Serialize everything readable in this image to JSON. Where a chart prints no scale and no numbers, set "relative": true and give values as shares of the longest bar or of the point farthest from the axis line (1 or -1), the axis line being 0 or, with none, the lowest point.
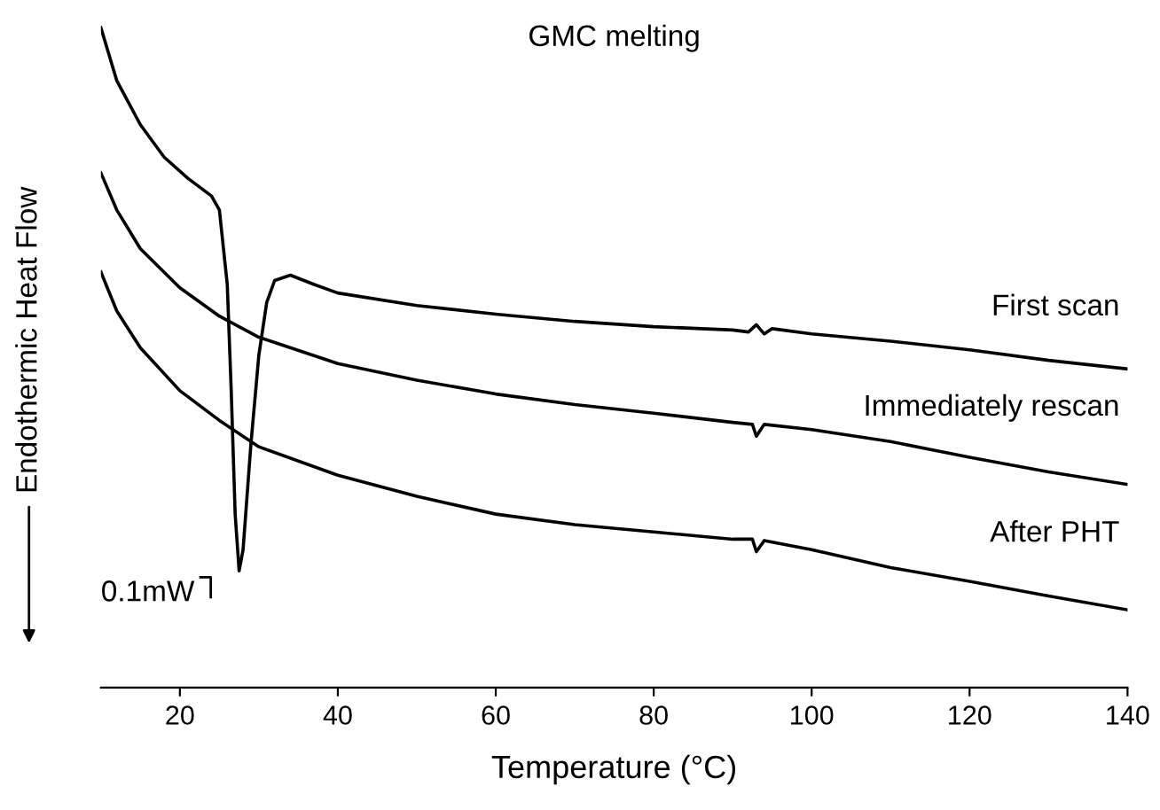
{
  "chart_data": {
    "type": "line",
    "title": "GMC melting",
    "xlabel": "Temperature (°C)",
    "ylabel": "Endothermic Heat Flow",
    "relative": true,
    "xlim": [
      10,
      140
    ],
    "xticks": [
      20,
      40,
      60,
      80,
      100,
      120,
      140
    ],
    "marker": "none",
    "line_style": "solid",
    "annotations": [
      "0.1mW"
    ],
    "series": [
      {
        "name": "First scan",
        "color": "#000000",
        "x": [
          10,
          12,
          15,
          18,
          21,
          24,
          25,
          26,
          26.5,
          27,
          27.5,
          28,
          29,
          30,
          31,
          32,
          34,
          37,
          40,
          50,
          60,
          70,
          80,
          90,
          92,
          93,
          94,
          95,
          100,
          110,
          120,
          130,
          140
        ],
        "values": [
          1.0,
          0.92,
          0.853,
          0.804,
          0.772,
          0.745,
          0.724,
          0.611,
          0.45,
          0.263,
          0.177,
          0.209,
          0.37,
          0.504,
          0.584,
          0.617,
          0.625,
          0.611,
          0.598,
          0.579,
          0.566,
          0.555,
          0.547,
          0.542,
          0.539,
          0.55,
          0.536,
          0.544,
          0.536,
          0.525,
          0.512,
          0.496,
          0.483
        ]
      },
      {
        "name": "Immediately rescan",
        "color": "#000000",
        "x": [
          10,
          12,
          15,
          20,
          25,
          30,
          40,
          50,
          60,
          70,
          80,
          90,
          92.5,
          93,
          94,
          100,
          110,
          120,
          130,
          140
        ],
        "values": [
          0.78,
          0.724,
          0.665,
          0.606,
          0.563,
          0.531,
          0.491,
          0.466,
          0.445,
          0.429,
          0.416,
          0.402,
          0.399,
          0.381,
          0.399,
          0.391,
          0.373,
          0.349,
          0.327,
          0.308
        ]
      },
      {
        "name": "After PHT",
        "color": "#000000",
        "x": [
          10,
          12,
          15,
          20,
          25,
          30,
          40,
          50,
          60,
          70,
          80,
          90,
          92.5,
          93,
          94,
          100,
          110,
          120,
          130,
          140
        ],
        "values": [
          0.63,
          0.571,
          0.515,
          0.45,
          0.405,
          0.365,
          0.322,
          0.29,
          0.263,
          0.247,
          0.236,
          0.225,
          0.225,
          0.206,
          0.223,
          0.209,
          0.182,
          0.161,
          0.139,
          0.118
        ]
      }
    ]
  }
}
